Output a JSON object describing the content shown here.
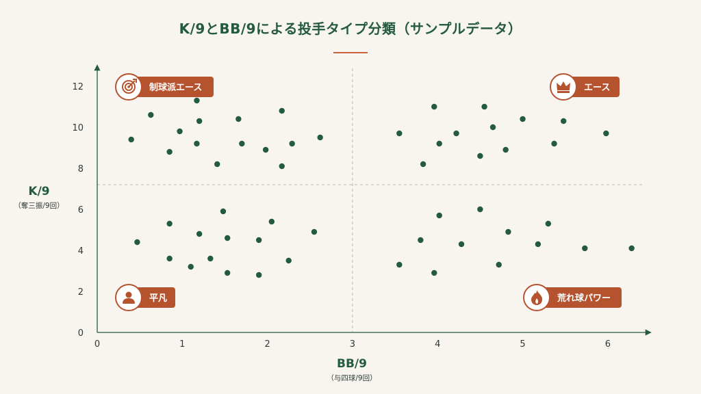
{
  "title": "K/9とBB/9による投手タイプ分類（サンプルデータ）",
  "colors": {
    "background": "#f8f4ef",
    "title": "#245a3e",
    "point": "#245a3e",
    "label_box": "#b5532f",
    "icon_ring": "#b5532f",
    "divider": "#b9b4ad",
    "axis": "#245a3e"
  },
  "chart_data": {
    "type": "scatter",
    "xlabel": "BB/9",
    "xlabel_sub": "（与四球/9回）",
    "ylabel": "K/9",
    "ylabel_sub": "（奪三振/9回）",
    "xlim": [
      0,
      6.5
    ],
    "ylim": [
      0,
      13
    ],
    "xticks": [
      0,
      1,
      2,
      3,
      4,
      5,
      6
    ],
    "yticks": [
      0,
      2,
      4,
      6,
      8,
      10,
      12
    ],
    "divider_x": 3,
    "divider_y": 7.2,
    "quadrants": [
      {
        "name": "quadrant-control-ace",
        "label": "制球派エース",
        "icon": "target-icon",
        "position": "top-left"
      },
      {
        "name": "quadrant-ace",
        "label": "エース",
        "icon": "crown-icon",
        "position": "top-right"
      },
      {
        "name": "quadrant-average",
        "label": "平凡",
        "icon": "person-icon",
        "position": "bottom-left"
      },
      {
        "name": "quadrant-wild-power",
        "label": "荒れ球パワー",
        "icon": "fire-icon",
        "position": "bottom-right"
      }
    ],
    "points": [
      {
        "x": 0.4,
        "y": 9.4
      },
      {
        "x": 0.63,
        "y": 10.6
      },
      {
        "x": 0.85,
        "y": 8.8
      },
      {
        "x": 0.97,
        "y": 9.8
      },
      {
        "x": 1.17,
        "y": 11.3
      },
      {
        "x": 1.2,
        "y": 10.3
      },
      {
        "x": 1.17,
        "y": 9.2
      },
      {
        "x": 1.41,
        "y": 8.2
      },
      {
        "x": 1.66,
        "y": 10.4
      },
      {
        "x": 1.7,
        "y": 9.2
      },
      {
        "x": 1.98,
        "y": 8.9
      },
      {
        "x": 2.17,
        "y": 10.8
      },
      {
        "x": 2.17,
        "y": 8.1
      },
      {
        "x": 2.29,
        "y": 9.2
      },
      {
        "x": 2.62,
        "y": 9.5
      },
      {
        "x": 3.55,
        "y": 9.7
      },
      {
        "x": 3.83,
        "y": 8.2
      },
      {
        "x": 3.96,
        "y": 11.0
      },
      {
        "x": 4.02,
        "y": 9.2
      },
      {
        "x": 4.22,
        "y": 9.7
      },
      {
        "x": 4.5,
        "y": 8.6
      },
      {
        "x": 4.55,
        "y": 11.0
      },
      {
        "x": 4.65,
        "y": 10.0
      },
      {
        "x": 4.8,
        "y": 8.9
      },
      {
        "x": 5.0,
        "y": 10.4
      },
      {
        "x": 5.37,
        "y": 9.2
      },
      {
        "x": 5.48,
        "y": 10.3
      },
      {
        "x": 5.98,
        "y": 9.7
      },
      {
        "x": 0.47,
        "y": 4.4
      },
      {
        "x": 0.85,
        "y": 5.3
      },
      {
        "x": 0.85,
        "y": 3.6
      },
      {
        "x": 1.1,
        "y": 3.2
      },
      {
        "x": 1.2,
        "y": 4.8
      },
      {
        "x": 1.33,
        "y": 3.6
      },
      {
        "x": 1.48,
        "y": 5.9
      },
      {
        "x": 1.53,
        "y": 4.6
      },
      {
        "x": 1.53,
        "y": 2.9
      },
      {
        "x": 1.9,
        "y": 4.5
      },
      {
        "x": 1.9,
        "y": 2.8
      },
      {
        "x": 2.05,
        "y": 5.4
      },
      {
        "x": 2.25,
        "y": 3.5
      },
      {
        "x": 2.55,
        "y": 4.9
      },
      {
        "x": 3.55,
        "y": 3.3
      },
      {
        "x": 3.8,
        "y": 4.5
      },
      {
        "x": 3.96,
        "y": 2.9
      },
      {
        "x": 4.02,
        "y": 5.7
      },
      {
        "x": 4.28,
        "y": 4.3
      },
      {
        "x": 4.5,
        "y": 6.0
      },
      {
        "x": 4.72,
        "y": 3.3
      },
      {
        "x": 4.83,
        "y": 4.9
      },
      {
        "x": 5.18,
        "y": 4.3
      },
      {
        "x": 5.3,
        "y": 5.3
      },
      {
        "x": 5.73,
        "y": 4.1
      },
      {
        "x": 6.28,
        "y": 4.1
      }
    ]
  }
}
